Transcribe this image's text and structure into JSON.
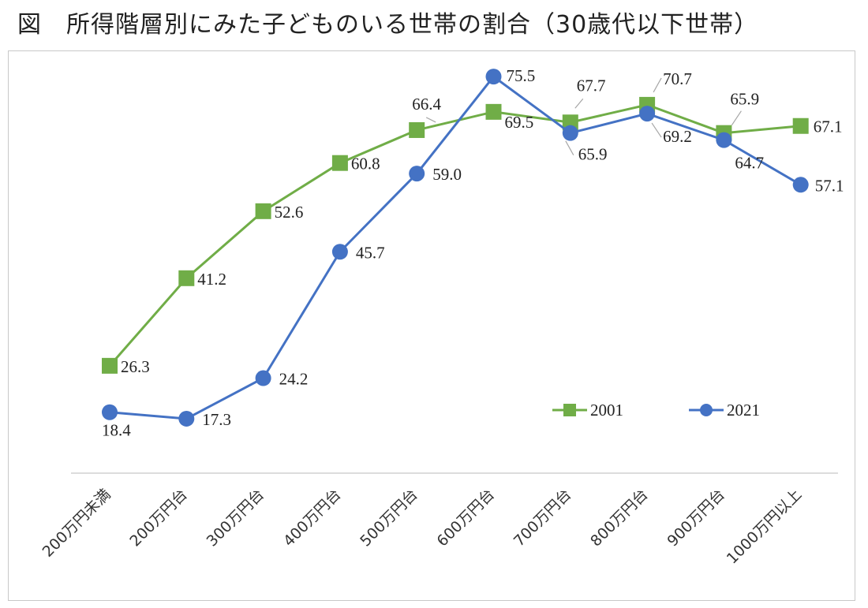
{
  "figure": {
    "title": "図　所得階層別にみた子どものいる世帯の割合（30歳代以下世帯）"
  },
  "chart_data": {
    "type": "line",
    "categories": [
      "200万円未満",
      "200万円台",
      "300万円台",
      "400万円台",
      "500万円台",
      "600万円台",
      "700万円台",
      "800万円台",
      "900万円台",
      "1000万円以上"
    ],
    "series": [
      {
        "name": "2001",
        "color": "#70ad47",
        "marker": "square",
        "values": [
          26.3,
          41.2,
          52.6,
          60.8,
          66.4,
          69.5,
          67.7,
          70.7,
          65.9,
          67.1
        ]
      },
      {
        "name": "2021",
        "color": "#4472c4",
        "marker": "circle",
        "values": [
          18.4,
          17.3,
          24.2,
          45.7,
          59.0,
          75.5,
          65.9,
          69.2,
          64.7,
          57.1
        ]
      }
    ],
    "ylim": [
      0,
      80
    ],
    "grid": false,
    "legend": "bottom-right"
  }
}
